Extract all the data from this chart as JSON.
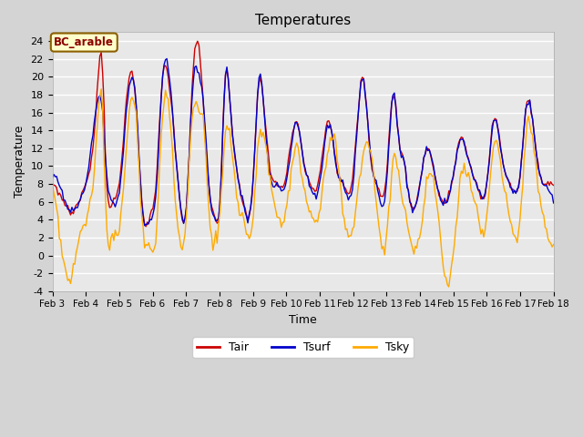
{
  "title": "Temperatures",
  "xlabel": "Time",
  "ylabel": "Temperature",
  "ylim": [
    -4,
    25
  ],
  "yticks": [
    -4,
    -2,
    0,
    2,
    4,
    6,
    8,
    10,
    12,
    14,
    16,
    18,
    20,
    22,
    24
  ],
  "color_tair": "#cc0000",
  "color_tsurf": "#0000cc",
  "color_tsky": "#ffaa00",
  "legend_label_tair": "Tair",
  "legend_label_tsurf": "Tsurf",
  "legend_label_tsky": "Tsky",
  "annotation_text": "BC_arable",
  "fig_bg_color": "#d4d4d4",
  "plot_bg_color": "#e8e8e8",
  "start_day": 3,
  "end_day": 18,
  "lw": 1.0,
  "title_fontsize": 11,
  "label_fontsize": 9,
  "tick_fontsize": 8,
  "xtick_fontsize": 7.5
}
